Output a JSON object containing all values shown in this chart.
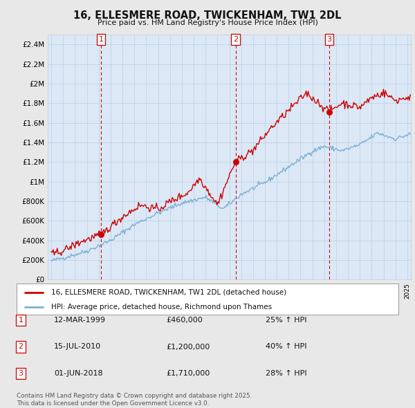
{
  "title": "16, ELLESMERE ROAD, TWICKENHAM, TW1 2DL",
  "subtitle": "Price paid vs. HM Land Registry's House Price Index (HPI)",
  "hpi_color": "#7bafd4",
  "price_color": "#cc0000",
  "ylim": [
    0,
    2500000
  ],
  "yticks": [
    0,
    200000,
    400000,
    600000,
    800000,
    1000000,
    1200000,
    1400000,
    1600000,
    1800000,
    2000000,
    2200000,
    2400000
  ],
  "ytick_labels": [
    "£0",
    "£200K",
    "£400K",
    "£600K",
    "£800K",
    "£1M",
    "£1.2M",
    "£1.4M",
    "£1.6M",
    "£1.8M",
    "£2M",
    "£2.2M",
    "£2.4M"
  ],
  "xlim_left": 1994.7,
  "xlim_right": 2025.3,
  "transaction_dates": [
    1999.19,
    2010.54,
    2018.42
  ],
  "transaction_prices": [
    460000,
    1200000,
    1710000
  ],
  "transaction_labels": [
    "1",
    "2",
    "3"
  ],
  "legend_entries": [
    "16, ELLESMERE ROAD, TWICKENHAM, TW1 2DL (detached house)",
    "HPI: Average price, detached house, Richmond upon Thames"
  ],
  "table_rows": [
    [
      "1",
      "12-MAR-1999",
      "£460,000",
      "25% ↑ HPI"
    ],
    [
      "2",
      "15-JUL-2010",
      "£1,200,000",
      "40% ↑ HPI"
    ],
    [
      "3",
      "01-JUN-2018",
      "£1,710,000",
      "28% ↑ HPI"
    ]
  ],
  "footer_text": "Contains HM Land Registry data © Crown copyright and database right 2025.\nThis data is licensed under the Open Government Licence v3.0.",
  "background_color": "#e8e8e8",
  "plot_background": "#dce8f5"
}
